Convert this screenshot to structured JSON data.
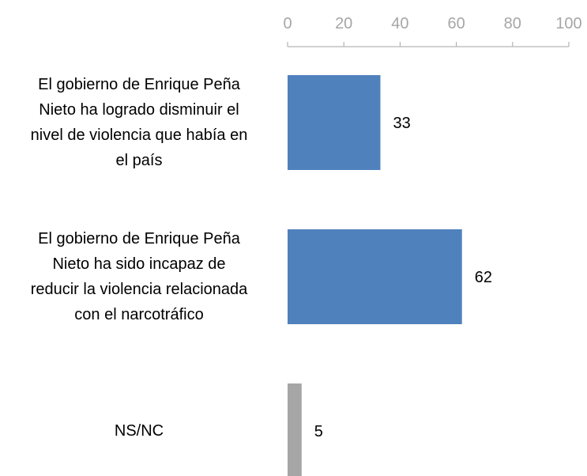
{
  "chart_data": {
    "type": "bar",
    "orientation": "horizontal",
    "categories": [
      "El gobierno de Enrique Peña Nieto ha logrado disminuir el nivel de violencia que había en el país",
      "El gobierno de Enrique Peña Nieto ha sido incapaz de reducir la violencia relacionada con el narcotráfico",
      "NS/NC"
    ],
    "category_lines": [
      [
        "El gobierno de Enrique Peña",
        "Nieto ha logrado disminuir el",
        "nivel de violencia que había en",
        "el país"
      ],
      [
        "El gobierno de Enrique Peña",
        "Nieto ha sido incapaz de",
        "reducir la violencia relacionada",
        "con el narcotráfico"
      ],
      [
        "NS/NC"
      ]
    ],
    "values": [
      33,
      62,
      5
    ],
    "value_labels": [
      "33",
      "62",
      "5"
    ],
    "colors": [
      "#4f81bd",
      "#4f81bd",
      "#a6a6a6"
    ],
    "axis_color": "#a6a6a6",
    "xlim": [
      0,
      100
    ],
    "ticks": [
      0,
      20,
      40,
      60,
      80,
      100
    ],
    "tick_labels": [
      "0",
      "20",
      "40",
      "60",
      "80",
      "100"
    ],
    "axis_position": "top",
    "grid": false,
    "legend": "none"
  }
}
